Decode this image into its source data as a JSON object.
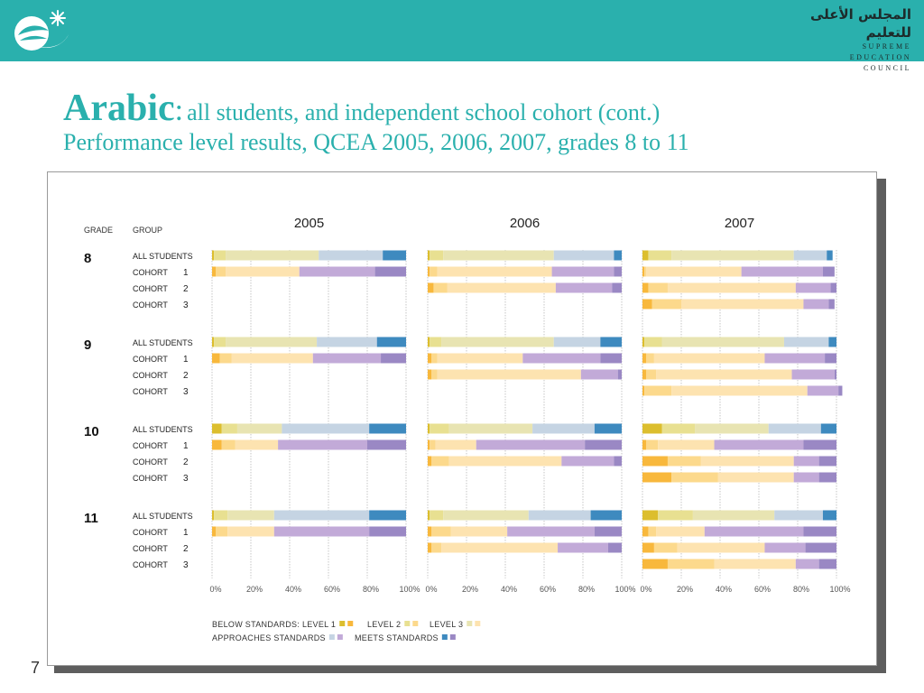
{
  "header": {
    "council_arabic": "المجلس الأعلى للتعليم",
    "council_english": [
      "SUPREME",
      "EDUCATION",
      "COUNCIL"
    ],
    "background_color": "#2ab0ad"
  },
  "title": {
    "main": "Arabic",
    "colon": ":",
    "subtitle": "all students, and independent school cohort (cont.)",
    "line2": "Performance level results, QCEA 2005, 2006, 2007, grades 8 to 11"
  },
  "page_number": "7",
  "chart_data": {
    "type": "bar",
    "stacked": true,
    "orientation": "horizontal",
    "column_headers": [
      "GRADE",
      "GROUP"
    ],
    "years": [
      "2005",
      "2006",
      "2007"
    ],
    "x_ticks": [
      "0%",
      "20%",
      "40%",
      "60%",
      "80%",
      "100%"
    ],
    "xlim": [
      0,
      100
    ],
    "grid": true,
    "segment_order": [
      "Level 1",
      "Level 2",
      "Level 3",
      "Approaches standards",
      "Meets standards"
    ],
    "colors": {
      "all_students": [
        "#dcbe2e",
        "#e8e091",
        "#e8e4b2",
        "#c5d4e3",
        "#3e8abf"
      ],
      "cohort": [
        "#f8b83c",
        "#fcd98c",
        "#fde3b0",
        "#c2aad8",
        "#9a88c4"
      ]
    },
    "legend": [
      {
        "label": "BELOW STANDARDS: LEVEL 1",
        "colors": [
          "#dcbe2e",
          "#f8b83c"
        ]
      },
      {
        "label": "LEVEL 2",
        "colors": [
          "#e8e091",
          "#fcd98c"
        ]
      },
      {
        "label": "LEVEL 3",
        "colors": [
          "#e8e4b2",
          "#fde3b0"
        ]
      },
      {
        "label": "APPROACHES STANDARDS",
        "colors": [
          "#c5d4e3",
          "#c2aad8"
        ]
      },
      {
        "label": "MEETS STANDARDS",
        "colors": [
          "#3e8abf",
          "#9a88c4"
        ]
      }
    ],
    "grades": [
      {
        "grade": "8",
        "rows": [
          {
            "group": "ALL STUDENTS",
            "num": "",
            "type": "all",
            "values": {
              "2005": [
                1,
                6,
                48,
                33,
                12
              ],
              "2006": [
                1,
                7,
                57,
                31,
                4
              ],
              "2007": [
                3,
                12,
                63,
                17,
                3
              ]
            }
          },
          {
            "group": "COHORT",
            "num": "1",
            "type": "cohort",
            "values": {
              "2005": [
                2,
                5,
                38,
                39,
                16
              ],
              "2006": [
                1,
                4,
                59,
                32,
                4
              ],
              "2007": [
                1,
                1,
                49,
                42,
                6
              ]
            }
          },
          {
            "group": "COHORT",
            "num": "2",
            "type": "cohort",
            "values": {
              "2006": [
                3,
                7,
                56,
                29,
                5
              ],
              "2007": [
                3,
                10,
                66,
                18,
                3
              ]
            }
          },
          {
            "group": "COHORT",
            "num": "3",
            "type": "cohort",
            "values": {
              "2007": [
                5,
                15,
                63,
                13,
                3
              ]
            }
          }
        ]
      },
      {
        "grade": "9",
        "rows": [
          {
            "group": "ALL STUDENTS",
            "num": "",
            "type": "all",
            "values": {
              "2005": [
                1,
                6,
                47,
                31,
                15
              ],
              "2006": [
                1,
                6,
                58,
                24,
                11
              ],
              "2007": [
                1,
                9,
                63,
                23,
                4
              ]
            }
          },
          {
            "group": "COHORT",
            "num": "1",
            "type": "cohort",
            "values": {
              "2005": [
                4,
                6,
                42,
                35,
                13
              ],
              "2006": [
                2,
                3,
                44,
                40,
                11
              ],
              "2007": [
                2,
                4,
                57,
                31,
                6
              ]
            }
          },
          {
            "group": "COHORT",
            "num": "2",
            "type": "cohort",
            "values": {
              "2006": [
                2,
                3,
                74,
                19,
                2
              ],
              "2007": [
                2,
                5,
                70,
                22,
                1
              ]
            }
          },
          {
            "group": "COHORT",
            "num": "3",
            "type": "cohort",
            "values": {
              "2007": [
                1,
                14,
                70,
                16,
                2
              ]
            }
          }
        ]
      },
      {
        "grade": "10",
        "rows": [
          {
            "group": "ALL STUDENTS",
            "num": "",
            "type": "all",
            "values": {
              "2005": [
                5,
                8,
                23,
                45,
                19
              ],
              "2006": [
                1,
                10,
                43,
                32,
                14
              ],
              "2007": [
                10,
                17,
                38,
                27,
                8
              ]
            }
          },
          {
            "group": "COHORT",
            "num": "1",
            "type": "cohort",
            "values": {
              "2005": [
                5,
                7,
                22,
                46,
                20
              ],
              "2006": [
                1,
                3,
                21,
                56,
                19
              ],
              "2007": [
                2,
                6,
                29,
                46,
                17
              ]
            }
          },
          {
            "group": "COHORT",
            "num": "2",
            "type": "cohort",
            "values": {
              "2006": [
                2,
                9,
                58,
                27,
                4
              ],
              "2007": [
                13,
                17,
                48,
                13,
                9
              ]
            }
          },
          {
            "group": "COHORT",
            "num": "3",
            "type": "cohort",
            "values": {
              "2007": [
                15,
                24,
                39,
                13,
                9
              ]
            }
          }
        ]
      },
      {
        "grade": "11",
        "rows": [
          {
            "group": "ALL STUDENTS",
            "num": "",
            "type": "all",
            "values": {
              "2005": [
                1,
                7,
                24,
                49,
                19
              ],
              "2006": [
                1,
                7,
                44,
                32,
                16
              ],
              "2007": [
                8,
                18,
                42,
                25,
                7
              ]
            }
          },
          {
            "group": "COHORT",
            "num": "1",
            "type": "cohort",
            "values": {
              "2005": [
                2,
                6,
                24,
                49,
                19
              ],
              "2006": [
                2,
                10,
                29,
                45,
                14
              ],
              "2007": [
                3,
                4,
                25,
                51,
                17
              ]
            }
          },
          {
            "group": "COHORT",
            "num": "2",
            "type": "cohort",
            "values": {
              "2006": [
                2,
                5,
                60,
                26,
                7
              ],
              "2007": [
                6,
                12,
                45,
                21,
                16
              ]
            }
          },
          {
            "group": "COHORT",
            "num": "3",
            "type": "cohort",
            "values": {
              "2007": [
                13,
                24,
                42,
                12,
                9
              ]
            }
          }
        ]
      }
    ]
  }
}
